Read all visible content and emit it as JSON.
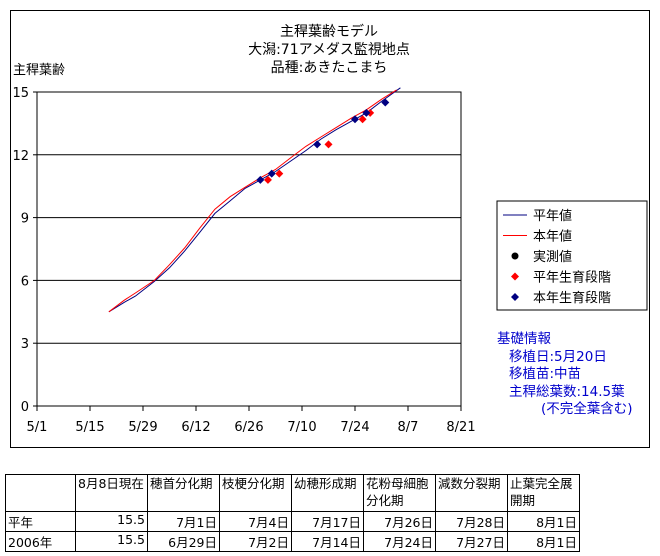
{
  "chart_data": {
    "type": "line",
    "title_lines": [
      "主稈葉齢モデル",
      "大潟:71アメダス監視地点",
      "品種:あきたこまち"
    ],
    "ylabel": "主稈葉齢",
    "ylim": [
      0,
      15
    ],
    "yticks": [
      0,
      3,
      6,
      9,
      12,
      15
    ],
    "xlim": [
      "2006-05-01",
      "2006-08-21"
    ],
    "xticks": [
      "2006-05-01",
      "2006-05-15",
      "2006-05-29",
      "2006-06-12",
      "2006-06-26",
      "2006-07-10",
      "2006-07-24",
      "2006-08-07",
      "2006-08-21"
    ],
    "xtick_labels": [
      "5/1",
      "5/15",
      "5/29",
      "6/12",
      "6/26",
      "7/10",
      "7/24",
      "8/7",
      "8/21"
    ],
    "grid": "horizontal",
    "legend": [
      {
        "label": "平年値",
        "type": "line",
        "color": "#000080"
      },
      {
        "label": "本年値",
        "type": "line",
        "color": "#ff0000"
      },
      {
        "label": "実測値",
        "type": "marker-circle",
        "color": "#000000"
      },
      {
        "label": "平年生育段階",
        "type": "marker-diamond",
        "color": "#ff0000"
      },
      {
        "label": "本年生育段階",
        "type": "marker-diamond",
        "color": "#000080"
      }
    ],
    "series": [
      {
        "name": "平年値",
        "color": "#000080",
        "points": [
          [
            "2006-05-20",
            4.5
          ],
          [
            "2006-05-24",
            4.95
          ],
          [
            "2006-05-27",
            5.25
          ],
          [
            "2006-06-01",
            5.95
          ],
          [
            "2006-06-05",
            6.6
          ],
          [
            "2006-06-09",
            7.4
          ],
          [
            "2006-06-13",
            8.3
          ],
          [
            "2006-06-17",
            9.2
          ],
          [
            "2006-06-21",
            9.8
          ],
          [
            "2006-06-25",
            10.4
          ],
          [
            "2006-06-29",
            10.8
          ],
          [
            "2006-07-03",
            11.2
          ],
          [
            "2006-07-07",
            11.7
          ],
          [
            "2006-07-11",
            12.2
          ],
          [
            "2006-07-15",
            12.75
          ],
          [
            "2006-07-19",
            13.2
          ],
          [
            "2006-07-23",
            13.6
          ],
          [
            "2006-07-27",
            14.0
          ],
          [
            "2006-07-31",
            14.55
          ],
          [
            "2006-08-05",
            15.2
          ]
        ]
      },
      {
        "name": "本年値",
        "color": "#ff0000",
        "points": [
          [
            "2006-05-20",
            4.5
          ],
          [
            "2006-05-24",
            5.05
          ],
          [
            "2006-05-27",
            5.4
          ],
          [
            "2006-06-01",
            6.0
          ],
          [
            "2006-06-05",
            6.75
          ],
          [
            "2006-06-09",
            7.55
          ],
          [
            "2006-06-13",
            8.5
          ],
          [
            "2006-06-17",
            9.4
          ],
          [
            "2006-06-21",
            10.0
          ],
          [
            "2006-06-25",
            10.45
          ],
          [
            "2006-06-29",
            10.9
          ],
          [
            "2006-07-03",
            11.3
          ],
          [
            "2006-07-07",
            11.85
          ],
          [
            "2006-07-11",
            12.4
          ],
          [
            "2006-07-15",
            12.85
          ],
          [
            "2006-07-19",
            13.3
          ],
          [
            "2006-07-23",
            13.75
          ],
          [
            "2006-07-27",
            14.15
          ],
          [
            "2006-07-31",
            14.65
          ],
          [
            "2006-08-04",
            15.1
          ]
        ]
      }
    ],
    "stage_markers": [
      {
        "name": "平年生育段階",
        "color": "#ff0000",
        "points": [
          [
            "2006-07-01",
            10.8
          ],
          [
            "2006-07-04",
            11.1
          ],
          [
            "2006-07-17",
            12.5
          ],
          [
            "2006-07-26",
            13.7
          ],
          [
            "2006-07-28",
            14.0
          ]
        ]
      },
      {
        "name": "本年生育段階",
        "color": "#000080",
        "points": [
          [
            "2006-06-29",
            10.8
          ],
          [
            "2006-07-02",
            11.1
          ],
          [
            "2006-07-14",
            12.5
          ],
          [
            "2006-07-24",
            13.7
          ],
          [
            "2006-07-27",
            14.0
          ],
          [
            "2006-08-01",
            14.5
          ]
        ]
      }
    ]
  },
  "info": {
    "heading": "基礎情報",
    "lines": [
      "移植日:5月20日",
      "移植苗:中苗",
      "主稈総葉数:14.5葉",
      "(不完全葉含む)"
    ]
  },
  "stage_table": {
    "headers": [
      "",
      "8月8日現在",
      "穂首分化期",
      "枝梗分化期",
      "幼穂形成期",
      "花粉母細胞分化期",
      "減数分裂期",
      "止葉完全展開期"
    ],
    "rows": [
      [
        "平年",
        "15.5",
        "7月1日",
        "7月4日",
        "7月17日",
        "7月26日",
        "7月28日",
        "8月1日"
      ],
      [
        "2006年",
        "15.5",
        "6月29日",
        "7月2日",
        "7月14日",
        "7月24日",
        "7月27日",
        "8月1日"
      ]
    ]
  }
}
